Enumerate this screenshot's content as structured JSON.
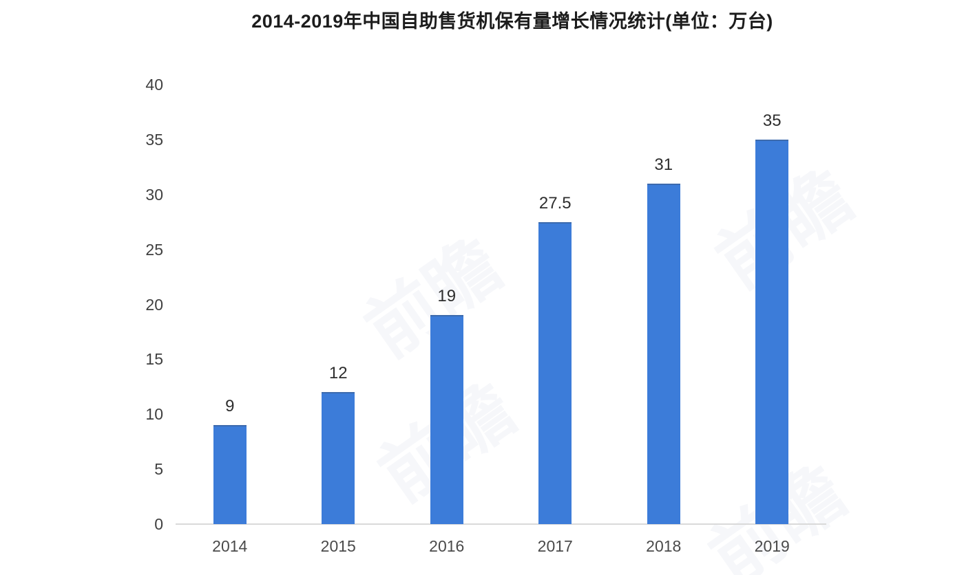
{
  "title": "2014-2019年中国自助售货机保有量增长情况统计(单位：万台)",
  "watermark": {
    "text": "前瞻"
  },
  "chart_data": {
    "type": "bar",
    "title": "2014-2019年中国自助售货机保有量增长情况统计(单位：万台)",
    "unit": "万台",
    "categories": [
      "2014",
      "2015",
      "2016",
      "2017",
      "2018",
      "2019"
    ],
    "values": [
      9,
      12,
      19,
      27.5,
      31,
      35
    ],
    "value_labels": [
      "9",
      "12",
      "19",
      "27.5",
      "31",
      "35"
    ],
    "yticks": [
      0,
      5,
      10,
      15,
      20,
      25,
      30,
      35,
      40
    ],
    "ylim": [
      0,
      40
    ],
    "xlabel": "",
    "ylabel": "",
    "grid": false,
    "legend": "none",
    "bar_color": "#3c7cd9",
    "axis_line_color": "#d9d9d9"
  }
}
